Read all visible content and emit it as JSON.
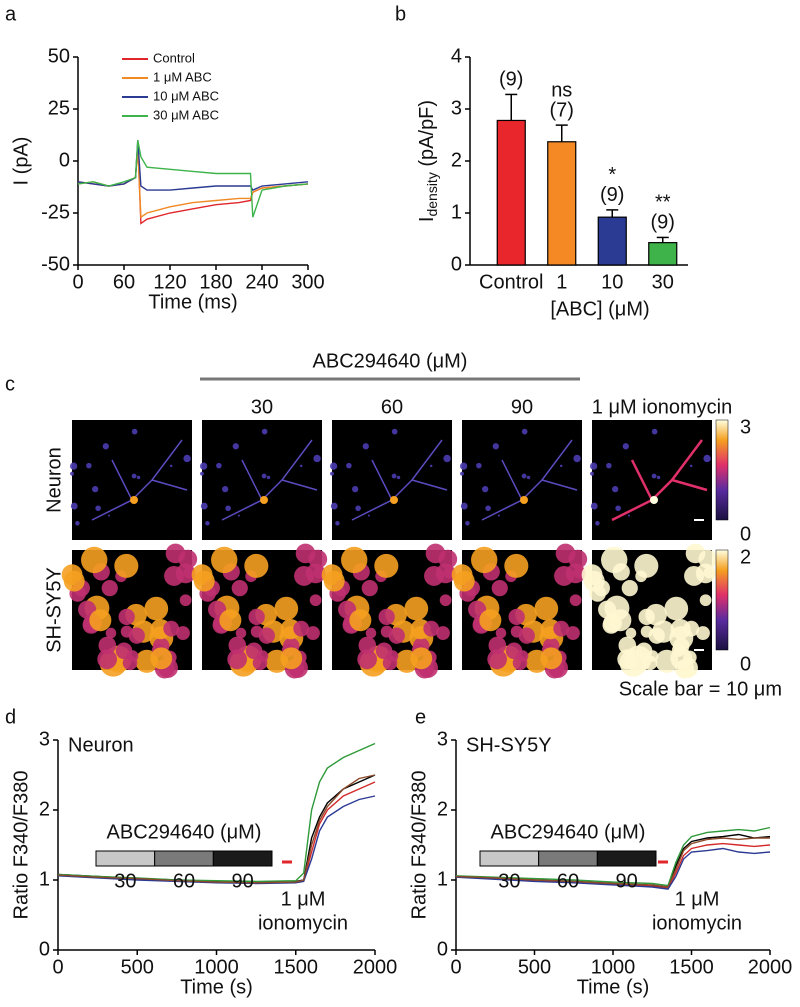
{
  "chart_data": [
    {
      "type": "line",
      "label": "a",
      "xlabel": "Time (ms)",
      "ylabel": "I (pA)",
      "x": [
        0,
        20,
        40,
        60,
        75,
        78,
        82,
        90,
        120,
        150,
        180,
        210,
        225,
        228,
        240,
        270,
        300
      ],
      "xlim": [
        0,
        300
      ],
      "xticks": [
        0,
        60,
        120,
        180,
        240,
        300
      ],
      "ylim": [
        -50,
        50
      ],
      "yticks": [
        -50,
        -25,
        0,
        25,
        50
      ],
      "series": [
        {
          "name": "Control",
          "color": "#e0262b",
          "values": [
            -10,
            -11,
            -12,
            -11,
            -8,
            8,
            -30,
            -28,
            -25,
            -23,
            -21,
            -20,
            -19,
            -15,
            -13,
            -12,
            -11
          ]
        },
        {
          "name": "1 μM ABC",
          "color": "#f08a24",
          "values": [
            -11,
            -10,
            -12,
            -11,
            -8,
            6,
            -27,
            -25,
            -22,
            -20,
            -19,
            -18,
            -18,
            -15,
            -13,
            -12,
            -11
          ]
        },
        {
          "name": "10 μM ABC",
          "color": "#2b3a93",
          "values": [
            -10,
            -11,
            -12,
            -11,
            -8,
            10,
            -12,
            -14,
            -14,
            -13,
            -12,
            -12,
            -12,
            -14,
            -12,
            -11,
            -10
          ]
        },
        {
          "name": "30 μM ABC",
          "color": "#3db34a",
          "values": [
            -11,
            -10,
            -12,
            -10,
            -8,
            10,
            2,
            -3,
            -4,
            -5,
            -6,
            -6,
            -6,
            -27,
            -14,
            -12,
            -11
          ]
        }
      ]
    },
    {
      "type": "bar",
      "label": "b",
      "xlabel": "[ABC] (μM)",
      "ylabel": {
        "main": "I",
        "sub": "density",
        "unit": " (pA/pF)"
      },
      "categories": [
        "Control",
        "1",
        "10",
        "30"
      ],
      "values": [
        2.78,
        2.37,
        0.92,
        0.43
      ],
      "errors": [
        0.5,
        0.32,
        0.14,
        0.1
      ],
      "colors": [
        "#e8262b",
        "#f58a25",
        "#2b3a93",
        "#3db34a"
      ],
      "count_labels": [
        "(9)",
        "(7)",
        "(9)",
        "(9)"
      ],
      "significance": [
        null,
        "ns",
        "*",
        "**"
      ],
      "ylim": [
        0,
        4
      ],
      "yticks": [
        0,
        1,
        2,
        3,
        4
      ]
    },
    {
      "type": "line",
      "label": "d",
      "xlabel": "Time (s)",
      "ylabel": "Ratio F340/F380",
      "inset_label": "Neuron",
      "treatment": {
        "title": "ABC294640 (μM)",
        "doses": [
          "30",
          "60",
          "90"
        ]
      },
      "stimulus": [
        "1 μM",
        "ionomycin"
      ],
      "x": [
        0,
        250,
        500,
        750,
        1000,
        1250,
        1500,
        1550,
        1600,
        1650,
        1700,
        1800,
        1900,
        2000
      ],
      "xlim": [
        0,
        2000
      ],
      "xticks": [
        0,
        500,
        1000,
        1500,
        2000
      ],
      "ylim": [
        0,
        3
      ],
      "yticks": [
        0,
        1,
        2,
        3
      ],
      "series": [
        {
          "color": "#000000",
          "values": [
            1.08,
            1.05,
            1.02,
            1.0,
            0.98,
            0.97,
            0.98,
            1.0,
            1.6,
            1.9,
            2.1,
            2.3,
            2.4,
            2.5
          ]
        },
        {
          "color": "#d42a2a",
          "values": [
            1.07,
            1.04,
            1.01,
            0.99,
            0.97,
            0.96,
            0.97,
            0.99,
            1.4,
            1.8,
            2.0,
            2.2,
            2.3,
            2.4
          ]
        },
        {
          "color": "#2f9a3a",
          "values": [
            1.08,
            1.05,
            1.03,
            1.0,
            0.99,
            0.98,
            0.99,
            1.1,
            2.0,
            2.4,
            2.6,
            2.75,
            2.85,
            2.95
          ]
        },
        {
          "color": "#2b3a93",
          "values": [
            1.06,
            1.03,
            1.0,
            0.98,
            0.96,
            0.95,
            0.96,
            0.98,
            1.3,
            1.7,
            1.9,
            2.05,
            2.15,
            2.2
          ]
        },
        {
          "color": "#8b4a2b",
          "values": [
            1.07,
            1.04,
            1.02,
            0.99,
            0.97,
            0.96,
            0.97,
            1.0,
            1.5,
            1.85,
            2.05,
            2.3,
            2.45,
            2.5
          ]
        }
      ]
    },
    {
      "type": "line",
      "label": "e",
      "xlabel": "Time (s)",
      "ylabel": "Ratio F340/F380",
      "inset_label": "SH-SY5Y",
      "treatment": {
        "title": "ABC294640 (μM)",
        "doses": [
          "30",
          "60",
          "90"
        ]
      },
      "stimulus": [
        "1 μM",
        "ionomycin"
      ],
      "x": [
        0,
        250,
        500,
        750,
        1000,
        1250,
        1350,
        1400,
        1450,
        1500,
        1600,
        1700,
        1800,
        1900,
        2000
      ],
      "xlim": [
        0,
        2000
      ],
      "xticks": [
        0,
        500,
        1000,
        1500,
        2000
      ],
      "ylim": [
        0,
        3
      ],
      "yticks": [
        0,
        1,
        2,
        3
      ],
      "series": [
        {
          "color": "#000000",
          "values": [
            1.05,
            1.03,
            1.0,
            0.98,
            0.95,
            0.92,
            0.9,
            1.2,
            1.45,
            1.55,
            1.6,
            1.62,
            1.65,
            1.6,
            1.62
          ]
        },
        {
          "color": "#d42a2a",
          "values": [
            1.05,
            1.02,
            0.99,
            0.97,
            0.94,
            0.91,
            0.88,
            1.1,
            1.35,
            1.45,
            1.5,
            1.52,
            1.5,
            1.48,
            1.5
          ]
        },
        {
          "color": "#2f9a3a",
          "values": [
            1.06,
            1.04,
            1.02,
            1.0,
            0.97,
            0.95,
            0.92,
            1.25,
            1.5,
            1.62,
            1.68,
            1.7,
            1.72,
            1.7,
            1.75
          ]
        },
        {
          "color": "#2b3a93",
          "values": [
            1.04,
            1.01,
            0.98,
            0.96,
            0.93,
            0.9,
            0.87,
            1.05,
            1.3,
            1.4,
            1.42,
            1.45,
            1.4,
            1.38,
            1.4
          ]
        },
        {
          "color": "#8b4a2b",
          "values": [
            1.05,
            1.03,
            1.0,
            0.98,
            0.95,
            0.93,
            0.9,
            1.15,
            1.42,
            1.52,
            1.58,
            1.6,
            1.58,
            1.6,
            1.6
          ]
        }
      ]
    }
  ],
  "image_panel": {
    "label": "c",
    "treatment": "ABC294640 (μM)",
    "columns": [
      "30",
      "60",
      "90",
      "1 μM ionomycin"
    ],
    "rows": [
      {
        "name": "Neuron",
        "scale_max": 3,
        "scale_min": 0
      },
      {
        "name": "SH-SY5Y",
        "scale_max": 2,
        "scale_min": 0
      }
    ],
    "scale_note": "Scale bar = 10 μm"
  }
}
